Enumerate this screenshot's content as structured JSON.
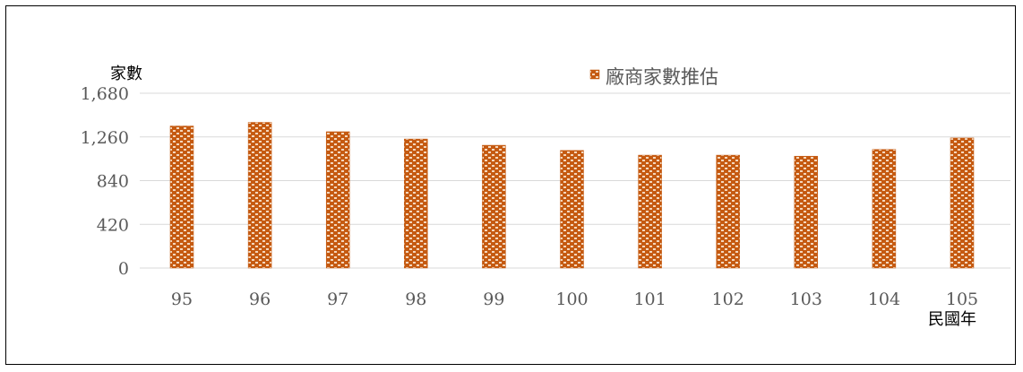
{
  "chart_data": {
    "type": "bar",
    "categories": [
      "95",
      "96",
      "97",
      "98",
      "99",
      "100",
      "101",
      "102",
      "103",
      "104",
      "105"
    ],
    "series": [
      {
        "name": "廠商家數推估",
        "values": [
          1365,
          1400,
          1310,
          1240,
          1180,
          1130,
          1085,
          1085,
          1075,
          1140,
          1250
        ]
      }
    ],
    "ylabel": "家數",
    "xlabel": "民國年",
    "ylim": [
      0,
      1680
    ],
    "yticks": [
      0,
      420,
      840,
      1260,
      1680
    ],
    "ytick_labels": [
      "0",
      "420",
      "840",
      "1,260",
      "1,680"
    ],
    "grid": true,
    "legend": "top-center",
    "colors": {
      "bar_fill": "#c55a11",
      "bar_pattern": "#f4d7bd",
      "grid": "#d9d9d9",
      "axis": "#d9d9d9"
    }
  }
}
